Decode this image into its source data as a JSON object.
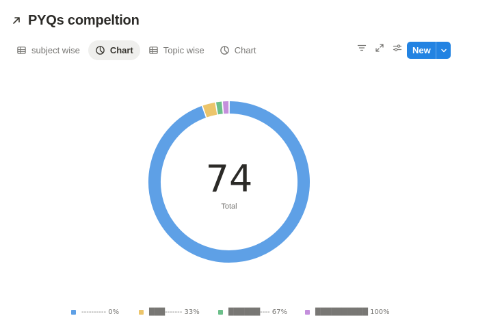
{
  "page": {
    "title": "PYQs compeltion",
    "title_icon": "arrow-up-right-icon"
  },
  "tabs": [
    {
      "label": "subject wise",
      "icon": "table-icon",
      "active": false
    },
    {
      "label": "Chart",
      "icon": "pie-chart-icon",
      "active": true
    },
    {
      "label": "Topic wise",
      "icon": "table-icon",
      "active": false
    },
    {
      "label": "Chart",
      "icon": "pie-chart-icon",
      "active": false
    }
  ],
  "toolbar": {
    "icons": [
      "filter-icon",
      "expand-icon",
      "settings-sliders-icon"
    ],
    "new_label": "New",
    "accent": "#2383e2"
  },
  "chart_data": {
    "type": "pie",
    "variant": "donut",
    "center_value": "74",
    "center_label": "Total",
    "categories": [
      "---------- 0%",
      "███------- 33%",
      "██████---- 67%",
      "██████████ 100%"
    ],
    "values": [
      70,
      2,
      1,
      1
    ],
    "colors": [
      "#5ea0e6",
      "#ecc56b",
      "#6cbf8a",
      "#c48fdc"
    ],
    "legend_position": "bottom"
  }
}
